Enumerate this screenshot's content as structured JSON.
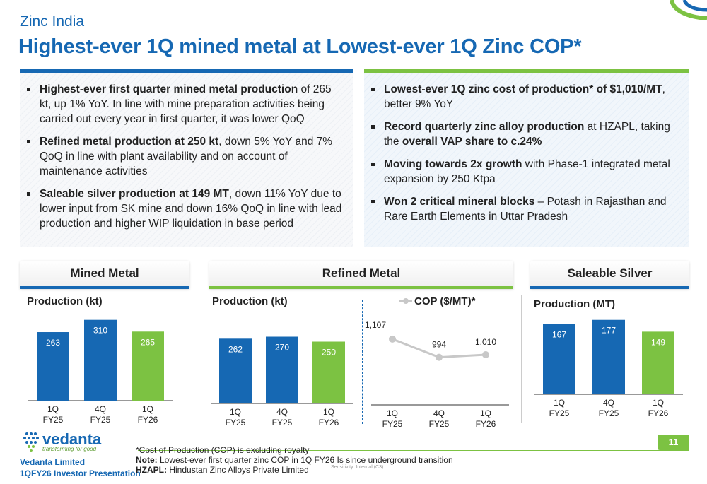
{
  "header": {
    "kicker": "Zinc India",
    "title": "Highest-ever 1Q mined metal at Lowest-ever 1Q Zinc COP*"
  },
  "left_bullets": [
    {
      "bold": "Highest-ever first quarter mined metal production",
      "text": " of 265 kt, up 1% YoY. In line with mine preparation activities being carried out every year in first quarter, it was lower QoQ"
    },
    {
      "bold": "Refined metal production at 250 kt",
      "text": ", down 5% YoY and 7% QoQ in line with plant availability and on account of maintenance activities"
    },
    {
      "bold": "Saleable silver production at 149 MT",
      "text": ", down 11% YoY due to lower input from SK mine and down 16% QoQ in line with lead production and higher WIP liquidation in base period"
    }
  ],
  "right_bullets": [
    {
      "parts": [
        {
          "b": true,
          "t": "Lowest-ever 1Q zinc cost of production* of $1,010/MT"
        },
        {
          "b": false,
          "t": ", better 9% YoY"
        }
      ]
    },
    {
      "parts": [
        {
          "b": true,
          "t": "Record quarterly zinc alloy production"
        },
        {
          "b": false,
          "t": " at HZAPL, taking the "
        },
        {
          "b": true,
          "t": "overall VAP share to c.24%"
        }
      ]
    },
    {
      "parts": [
        {
          "b": true,
          "t": "Moving towards 2x growth"
        },
        {
          "b": false,
          "t": " with Phase-1 integrated metal expansion by 250 Ktpa"
        }
      ]
    },
    {
      "parts": [
        {
          "b": true,
          "t": "Won 2 critical mineral blocks"
        },
        {
          "b": false,
          "t": " – Potash in Rajasthan and Rare Earth Elements in Uttar Pradesh"
        }
      ]
    }
  ],
  "sections": {
    "mined": "Mined Metal",
    "refined": "Refined Metal",
    "silver": "Saleable Silver"
  },
  "chart_data": [
    {
      "id": "mined",
      "type": "bar",
      "subtitle": "Production (kt)",
      "categories": [
        "1Q FY25",
        "4Q FY25",
        "1Q FY26"
      ],
      "values": [
        263,
        310,
        265
      ],
      "colors": [
        "#1668b3",
        "#1668b3",
        "#7cc242"
      ],
      "ylim": [
        0,
        320
      ]
    },
    {
      "id": "refined",
      "type": "bar",
      "subtitle": "Production (kt)",
      "categories": [
        "1Q FY25",
        "4Q FY25",
        "1Q FY26"
      ],
      "values": [
        262,
        270,
        250
      ],
      "colors": [
        "#1668b3",
        "#1668b3",
        "#7cc242"
      ],
      "ylim": [
        0,
        320
      ]
    },
    {
      "id": "cop",
      "type": "line",
      "legend": "COP ($/MT)*",
      "categories": [
        "1Q FY25",
        "4Q FY25",
        "1Q FY26"
      ],
      "values": [
        1107,
        994,
        1010
      ],
      "value_labels": [
        "1,107",
        "994",
        "1,010"
      ],
      "color": "#c8c8c8",
      "ylim": [
        800,
        1150
      ]
    },
    {
      "id": "silver",
      "type": "bar",
      "subtitle": "Production (MT)",
      "categories": [
        "1Q FY25",
        "4Q FY25",
        "1Q FY26"
      ],
      "values": [
        167,
        177,
        149
      ],
      "colors": [
        "#1668b3",
        "#1668b3",
        "#7cc242"
      ],
      "ylim": [
        0,
        190
      ]
    }
  ],
  "footer": {
    "logo_word": "vedanta",
    "logo_tag": "transforming for good",
    "company_line1": "Vedanta Limited",
    "company_line2": "1QFY26 Investor Presentation",
    "note1": "*Cost of Production (COP) is excluding royalty",
    "note2_label": "Note:",
    "note2_text": " Lowest-ever first quarter zinc COP in 1Q FY26 Is since underground transition",
    "note3_label": "HZAPL:",
    "note3_text": " Hindustan Zinc Alloys Private Limited",
    "sensitivity": "Sensitivity: Internal (C3)",
    "page": "11"
  }
}
